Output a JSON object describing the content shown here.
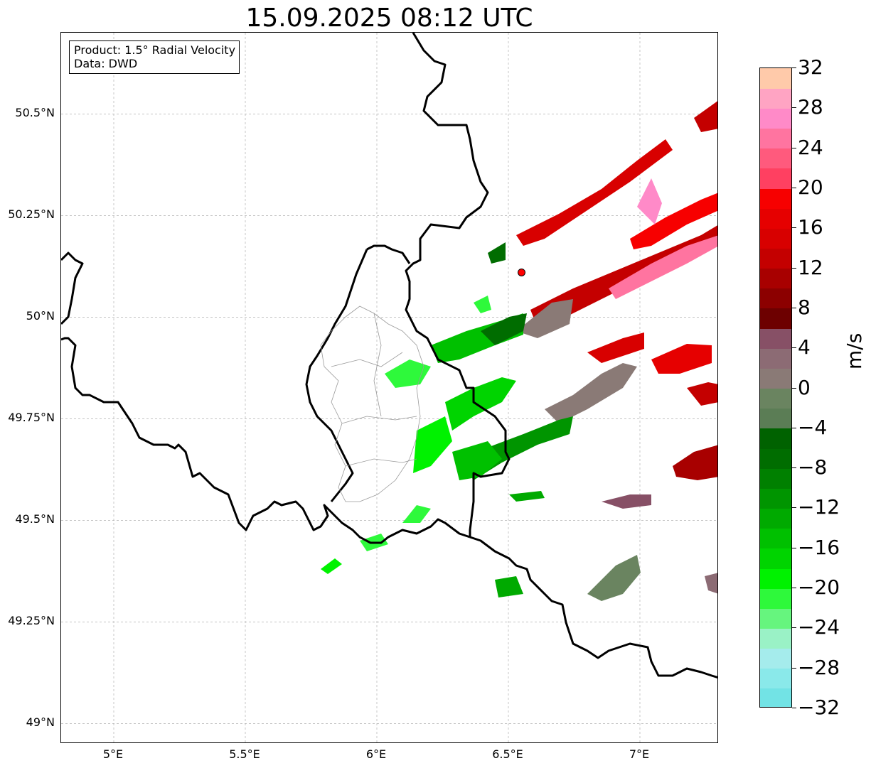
{
  "title": "15.09.2025 08:12 UTC",
  "info": {
    "product": "Product: 1.5° Radial Velocity",
    "data_source": "Data: DWD"
  },
  "map": {
    "lon_range": [
      4.8,
      7.3
    ],
    "lat_range": [
      48.95,
      50.7
    ],
    "lat_ticks": [
      {
        "value": 50.5,
        "label": "50.5°N"
      },
      {
        "value": 50.25,
        "label": "50.25°N"
      },
      {
        "value": 50.0,
        "label": "50°N"
      },
      {
        "value": 49.75,
        "label": "49.75°N"
      },
      {
        "value": 49.5,
        "label": "49.5°N"
      },
      {
        "value": 49.25,
        "label": "49.25°N"
      },
      {
        "value": 49.0,
        "label": "49°N"
      }
    ],
    "lon_ticks": [
      {
        "value": 5.0,
        "label": "5°E"
      },
      {
        "value": 5.5,
        "label": "5.5°E"
      },
      {
        "value": 6.0,
        "label": "6°E"
      },
      {
        "value": 6.5,
        "label": "6.5°E"
      },
      {
        "value": 7.0,
        "label": "7°E"
      }
    ],
    "grid": true,
    "radar_site": {
      "lon": 6.55,
      "lat": 50.11,
      "color": "#ff0000"
    },
    "border_color": "#000000"
  },
  "colorbar": {
    "unit": "m/s",
    "min": -32,
    "max": 32,
    "ticks": [
      {
        "value": 32,
        "label": "32"
      },
      {
        "value": 28,
        "label": "28"
      },
      {
        "value": 24,
        "label": "24"
      },
      {
        "value": 20,
        "label": "20"
      },
      {
        "value": 16,
        "label": "16"
      },
      {
        "value": 12,
        "label": "12"
      },
      {
        "value": 8,
        "label": "8"
      },
      {
        "value": 4,
        "label": "4"
      },
      {
        "value": 0,
        "label": "0"
      },
      {
        "value": -4,
        "label": "−4"
      },
      {
        "value": -8,
        "label": "−8"
      },
      {
        "value": -12,
        "label": "−12"
      },
      {
        "value": -16,
        "label": "−16"
      },
      {
        "value": -20,
        "label": "−20"
      },
      {
        "value": -24,
        "label": "−24"
      },
      {
        "value": -28,
        "label": "−28"
      },
      {
        "value": -32,
        "label": "−32"
      }
    ],
    "colors_bottom_to_top": [
      "#72e3e5",
      "#8ae9ea",
      "#a5ecec",
      "#9af2c6",
      "#66f57e",
      "#2ef93b",
      "#00f200",
      "#00d400",
      "#00c000",
      "#00aa00",
      "#009500",
      "#008000",
      "#006d00",
      "#006200",
      "#5b7d55",
      "#6a8460",
      "#8a7a76",
      "#8c6b74",
      "#875066",
      "#6d0000",
      "#8c0000",
      "#a80000",
      "#c40000",
      "#d80000",
      "#e60000",
      "#f70000",
      "#ff4061",
      "#ff5a7d",
      "#ff74a0",
      "#ff8ac8",
      "#ffa4c3",
      "#ffcaaa"
    ]
  }
}
